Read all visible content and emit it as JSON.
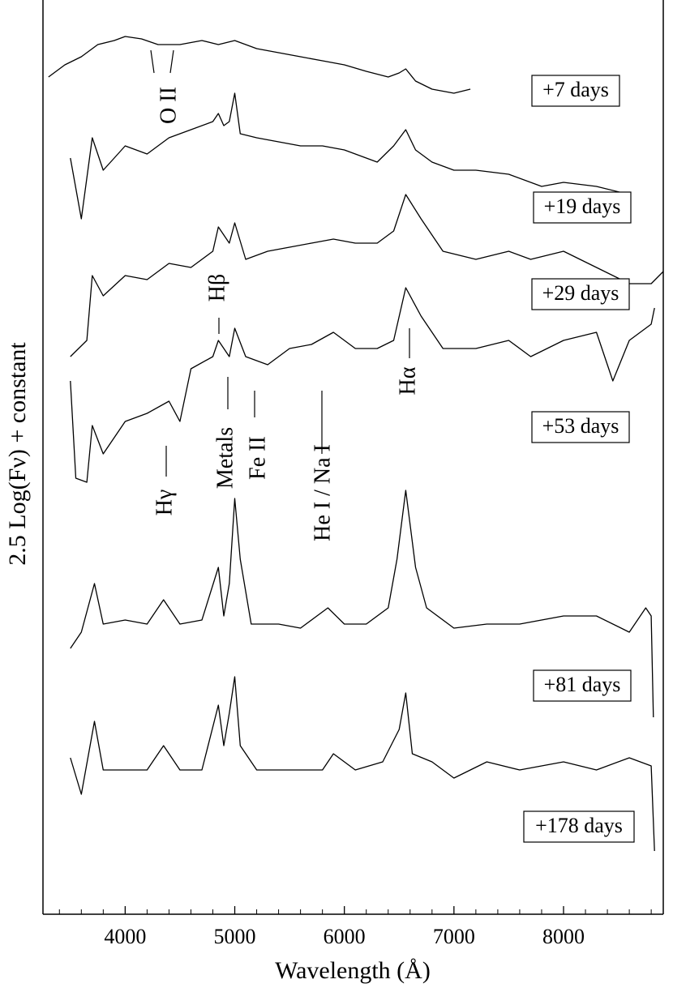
{
  "chart_data": {
    "type": "line",
    "x_label": "Wavelength (Å)",
    "y_label": "2.5 Log(Fν) + constant",
    "xlim": [
      3250,
      8910
    ],
    "ylim": [
      0,
      1128
    ],
    "xticks": [
      4000,
      5000,
      6000,
      7000,
      8000
    ],
    "xminorticks": [
      3400,
      3600,
      3800,
      4200,
      4400,
      4600,
      4800,
      5200,
      5400,
      5600,
      5800,
      6200,
      6400,
      6600,
      6800,
      7200,
      7400,
      7600,
      7800,
      8200,
      8400,
      8600,
      8800
    ],
    "annotations": [
      "O II",
      "Hβ",
      "Hγ",
      "Metals",
      "Fe II",
      "He I / Na I",
      "Hα"
    ],
    "series": [
      {
        "name": "+7 days",
        "color": "#000000",
        "x": [
          3300,
          3450,
          3600,
          3750,
          3900,
          4000,
          4150,
          4300,
          4500,
          4700,
          4850,
          5000,
          5200,
          5400,
          5600,
          5800,
          6000,
          6200,
          6400,
          6500,
          6560,
          6650,
          6800,
          7000,
          7150
        ],
        "values": [
          1033,
          1048,
          1058,
          1073,
          1078,
          1083,
          1080,
          1073,
          1073,
          1078,
          1073,
          1078,
          1068,
          1063,
          1058,
          1053,
          1048,
          1040,
          1033,
          1038,
          1043,
          1028,
          1018,
          1013,
          1018
        ]
      },
      {
        "name": "+19 days",
        "color": "#000000",
        "x": [
          3500,
          3600,
          3700,
          3800,
          3900,
          4000,
          4200,
          4400,
          4600,
          4800,
          4850,
          4900,
          4950,
          5000,
          5050,
          5200,
          5400,
          5600,
          5800,
          6000,
          6200,
          6300,
          6450,
          6560,
          6650,
          6800,
          7000,
          7200,
          7500,
          7800,
          8000,
          8300,
          8600
        ],
        "values": [
          933,
          858,
          958,
          918,
          933,
          948,
          938,
          958,
          968,
          978,
          988,
          973,
          978,
          1013,
          963,
          958,
          953,
          948,
          948,
          943,
          933,
          928,
          948,
          968,
          943,
          928,
          918,
          918,
          913,
          898,
          903,
          898,
          888
        ]
      },
      {
        "name": "+29 days",
        "color": "#000000",
        "x": [
          3500,
          3650,
          3700,
          3800,
          4000,
          4200,
          4400,
          4600,
          4800,
          4850,
          4950,
          5000,
          5100,
          5300,
          5500,
          5700,
          5900,
          6100,
          6300,
          6450,
          6560,
          6700,
          6900,
          7200,
          7500,
          7700,
          8000,
          8300,
          8600,
          8800,
          8910
        ],
        "values": [
          688,
          708,
          788,
          763,
          788,
          783,
          803,
          798,
          818,
          848,
          828,
          853,
          808,
          818,
          823,
          828,
          833,
          828,
          828,
          843,
          888,
          858,
          818,
          808,
          818,
          808,
          818,
          798,
          778,
          778,
          793
        ]
      },
      {
        "name": "+53 days",
        "color": "#000000",
        "x": [
          3500,
          3550,
          3650,
          3700,
          3800,
          4000,
          4200,
          4400,
          4500,
          4600,
          4800,
          4850,
          4950,
          5000,
          5100,
          5300,
          5500,
          5700,
          5900,
          6100,
          6300,
          6450,
          6560,
          6700,
          6900,
          7200,
          7500,
          7700,
          8000,
          8300,
          8450,
          8600,
          8800,
          8830
        ],
        "values": [
          658,
          538,
          533,
          603,
          568,
          608,
          618,
          633,
          608,
          673,
          688,
          708,
          688,
          723,
          688,
          678,
          698,
          703,
          718,
          698,
          698,
          708,
          773,
          738,
          698,
          698,
          708,
          688,
          708,
          718,
          658,
          708,
          728,
          748
        ]
      },
      {
        "name": "+81 days",
        "color": "#000000",
        "x": [
          3500,
          3600,
          3720,
          3800,
          4000,
          4200,
          4350,
          4500,
          4700,
          4850,
          4900,
          4950,
          5000,
          5050,
          5150,
          5400,
          5600,
          5850,
          6000,
          6200,
          6400,
          6480,
          6560,
          6650,
          6750,
          7000,
          7300,
          7600,
          8000,
          8300,
          8600,
          8750,
          8800,
          8820
        ],
        "values": [
          328,
          348,
          408,
          358,
          363,
          358,
          388,
          358,
          363,
          428,
          368,
          408,
          513,
          438,
          358,
          358,
          353,
          378,
          358,
          358,
          378,
          438,
          523,
          428,
          378,
          353,
          358,
          358,
          368,
          368,
          348,
          378,
          368,
          243
        ]
      },
      {
        "name": "+178 days",
        "color": "#000000",
        "x": [
          3500,
          3600,
          3720,
          3800,
          4000,
          4200,
          4350,
          4500,
          4700,
          4850,
          4900,
          4950,
          5000,
          5050,
          5200,
          5500,
          5800,
          5900,
          6100,
          6350,
          6500,
          6560,
          6620,
          6800,
          7000,
          7300,
          7600,
          8000,
          8300,
          8600,
          8800,
          8830
        ],
        "values": [
          193,
          148,
          238,
          178,
          178,
          178,
          208,
          178,
          178,
          258,
          208,
          248,
          293,
          208,
          178,
          178,
          178,
          198,
          178,
          188,
          228,
          273,
          198,
          188,
          168,
          188,
          178,
          188,
          178,
          193,
          183,
          78
        ]
      }
    ]
  }
}
